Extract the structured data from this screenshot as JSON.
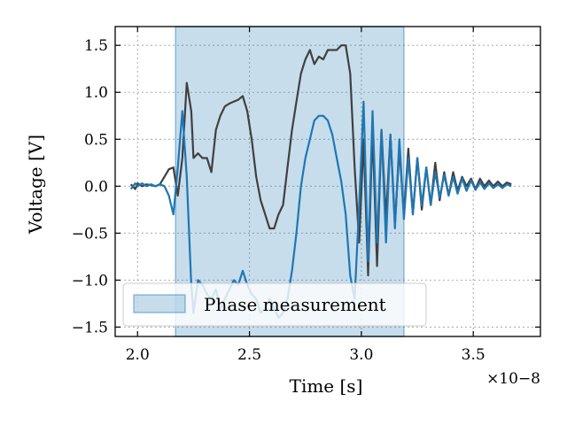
{
  "chart_data": {
    "type": "line",
    "title": "",
    "xlabel": "Time [s]",
    "ylabel": "Voltage [V]",
    "x_scale_label": "×10−8",
    "xlim": [
      1.9,
      3.8
    ],
    "ylim": [
      -1.6,
      1.7
    ],
    "xticks": [
      {
        "value": 2.0,
        "label": "2.0"
      },
      {
        "value": 2.5,
        "label": "2.5"
      },
      {
        "value": 3.0,
        "label": "3.0"
      },
      {
        "value": 3.5,
        "label": "3.5"
      }
    ],
    "yticks": [
      {
        "value": 1.5,
        "label": "1.5"
      },
      {
        "value": 1.0,
        "label": "1.0"
      },
      {
        "value": 0.5,
        "label": "0.5"
      },
      {
        "value": 0.0,
        "label": "0.0"
      },
      {
        "value": -0.5,
        "label": "−0.5"
      },
      {
        "value": -1.0,
        "label": "−1.0"
      },
      {
        "value": -1.5,
        "label": "−1.5"
      }
    ],
    "grid": true,
    "shaded_region": {
      "x_start": 2.17,
      "x_end": 3.19,
      "label": "Phase measurement",
      "color": "#1f77b4",
      "alpha": 0.25
    },
    "legend": {
      "position": "lower-left",
      "entries": [
        "Phase measurement"
      ]
    },
    "series": [
      {
        "name": "dark trace",
        "color": "#404040",
        "x": [
          1.97,
          1.99,
          2.0,
          2.02,
          2.04,
          2.06,
          2.08,
          2.1,
          2.12,
          2.14,
          2.16,
          2.18,
          2.2,
          2.22,
          2.24,
          2.25,
          2.27,
          2.29,
          2.31,
          2.33,
          2.35,
          2.37,
          2.39,
          2.41,
          2.43,
          2.45,
          2.47,
          2.49,
          2.51,
          2.53,
          2.55,
          2.57,
          2.59,
          2.61,
          2.63,
          2.65,
          2.67,
          2.69,
          2.71,
          2.73,
          2.75,
          2.77,
          2.79,
          2.81,
          2.83,
          2.85,
          2.87,
          2.89,
          2.91,
          2.93,
          2.95,
          2.97,
          2.99,
          3.01,
          3.03,
          3.05,
          3.07,
          3.09,
          3.11,
          3.13,
          3.15,
          3.17,
          3.19,
          3.21,
          3.23,
          3.25,
          3.27,
          3.29,
          3.31,
          3.33,
          3.35,
          3.37,
          3.39,
          3.41,
          3.43,
          3.45,
          3.47,
          3.49,
          3.51,
          3.53,
          3.55,
          3.57,
          3.59,
          3.61,
          3.63,
          3.65,
          3.67
        ],
        "y": [
          0.02,
          -0.03,
          0.03,
          0.0,
          0.02,
          0.01,
          0.0,
          0.02,
          0.1,
          0.18,
          0.2,
          -0.1,
          0.3,
          1.1,
          0.8,
          0.3,
          0.35,
          0.3,
          0.3,
          0.15,
          0.6,
          0.75,
          0.85,
          0.88,
          0.9,
          0.92,
          0.96,
          0.8,
          0.5,
          0.1,
          -0.15,
          -0.3,
          -0.45,
          -0.45,
          -0.3,
          -0.2,
          0.2,
          0.6,
          0.9,
          1.2,
          1.35,
          1.45,
          1.3,
          1.38,
          1.35,
          1.45,
          1.45,
          1.45,
          1.5,
          1.5,
          1.2,
          0.2,
          -0.6,
          0.5,
          -0.95,
          0.6,
          -0.85,
          0.6,
          -0.35,
          0.55,
          -0.4,
          0.4,
          -0.3,
          0.4,
          -0.3,
          0.3,
          -0.25,
          0.2,
          -0.2,
          0.25,
          -0.15,
          0.15,
          -0.1,
          0.15,
          -0.05,
          0.1,
          0.0,
          0.08,
          -0.03,
          0.08,
          0.0,
          0.06,
          0.0,
          0.05,
          0.0,
          0.04,
          0.02
        ]
      },
      {
        "name": "blue trace",
        "color": "#1f77b4",
        "x": [
          1.97,
          1.99,
          2.0,
          2.02,
          2.04,
          2.06,
          2.08,
          2.1,
          2.12,
          2.14,
          2.16,
          2.18,
          2.2,
          2.22,
          2.24,
          2.25,
          2.27,
          2.29,
          2.31,
          2.33,
          2.35,
          2.37,
          2.39,
          2.41,
          2.43,
          2.45,
          2.47,
          2.49,
          2.51,
          2.53,
          2.55,
          2.57,
          2.59,
          2.61,
          2.63,
          2.65,
          2.67,
          2.69,
          2.71,
          2.73,
          2.75,
          2.77,
          2.79,
          2.81,
          2.83,
          2.85,
          2.87,
          2.89,
          2.91,
          2.93,
          2.95,
          2.97,
          2.99,
          3.01,
          3.03,
          3.05,
          3.07,
          3.09,
          3.11,
          3.13,
          3.15,
          3.17,
          3.19,
          3.21,
          3.23,
          3.25,
          3.27,
          3.29,
          3.31,
          3.33,
          3.35,
          3.37,
          3.39,
          3.41,
          3.43,
          3.45,
          3.47,
          3.49,
          3.51,
          3.53,
          3.55,
          3.57,
          3.59,
          3.61,
          3.63,
          3.65,
          3.67
        ],
        "y": [
          -0.03,
          0.03,
          0.0,
          0.03,
          0.0,
          0.02,
          0.0,
          0.02,
          0.0,
          -0.1,
          -0.3,
          0.2,
          0.8,
          0.1,
          -1.05,
          -1.35,
          -1.0,
          -1.05,
          -1.15,
          -1.2,
          -1.1,
          -1.3,
          -1.2,
          -1.1,
          -1.0,
          -1.05,
          -0.9,
          -1.05,
          -1.15,
          -1.2,
          -1.35,
          -1.3,
          -1.2,
          -1.3,
          -1.4,
          -1.35,
          -1.2,
          -0.9,
          -0.5,
          0.0,
          0.3,
          0.5,
          0.7,
          0.75,
          0.75,
          0.7,
          0.55,
          0.3,
          0.05,
          -0.3,
          -0.95,
          -1.2,
          -0.2,
          0.9,
          -0.8,
          0.8,
          -0.6,
          0.6,
          -0.6,
          0.55,
          -0.45,
          0.5,
          -0.35,
          0.3,
          -0.3,
          0.3,
          -0.2,
          0.2,
          -0.2,
          0.15,
          -0.12,
          0.12,
          -0.1,
          0.1,
          -0.08,
          0.08,
          -0.05,
          0.06,
          -0.04,
          0.04,
          -0.03,
          0.03,
          -0.02,
          0.02,
          -0.02,
          0.02,
          0.0
        ]
      }
    ]
  }
}
